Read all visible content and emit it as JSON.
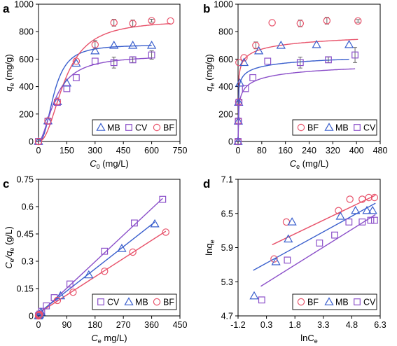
{
  "chart_data": [
    {
      "panel_label": "a",
      "type": "scatter",
      "xlabel": {
        "main": "C",
        "sub": "0",
        "unit": " (mg/L)"
      },
      "ylabel": {
        "main": "q",
        "sub": "e",
        "unit": " (mg/g)"
      },
      "xlim": [
        0,
        750
      ],
      "ylim": [
        0,
        1000
      ],
      "xticks": [
        "0",
        "150",
        "300",
        "450",
        "600",
        "750"
      ],
      "yticks": [
        "0",
        "200",
        "400",
        "600",
        "800",
        "1000"
      ],
      "xtick_values": [
        0,
        150,
        300,
        450,
        600,
        750
      ],
      "ytick_values": [
        0,
        200,
        400,
        600,
        800,
        1000
      ],
      "legend": [
        "MB",
        "CV",
        "BF"
      ],
      "series": [
        {
          "name": "MB",
          "marker": "triangle",
          "color": "#3a5fcd",
          "points": [
            [
              0,
              0
            ],
            [
              50,
              150
            ],
            [
              100,
              290
            ],
            [
              150,
              425
            ],
            [
              200,
              570
            ],
            [
              300,
              660
            ],
            [
              400,
              700
            ],
            [
              500,
              700
            ],
            [
              600,
              700
            ]
          ],
          "fit": {
            "qm": 705,
            "k": 0.012,
            "n": 2.4
          }
        },
        {
          "name": "CV",
          "marker": "square",
          "color": "#8b4fc9",
          "points": [
            [
              0,
              0
            ],
            [
              50,
              148
            ],
            [
              100,
              285
            ],
            [
              150,
              385
            ],
            [
              200,
              465
            ],
            [
              300,
              585
            ],
            [
              400,
              575
            ],
            [
              500,
              595
            ],
            [
              600,
              630
            ]
          ],
          "fit": {
            "qm": 628,
            "k": 0.011,
            "n": 1.8
          },
          "errors": [
            [
              400,
              40
            ],
            [
              500,
              20
            ],
            [
              600,
              30
            ]
          ]
        },
        {
          "name": "BF",
          "marker": "circle",
          "color": "#e8536b",
          "points": [
            [
              0,
              0
            ],
            [
              50,
              150
            ],
            [
              100,
              290
            ],
            [
              200,
              585
            ],
            [
              300,
              705
            ],
            [
              400,
              865
            ],
            [
              500,
              860
            ],
            [
              600,
              880
            ],
            [
              700,
              878
            ]
          ],
          "fit": {
            "qm": 883,
            "k": 0.0072,
            "n": 2.2
          },
          "errors": [
            [
              300,
              30
            ],
            [
              400,
              25
            ],
            [
              500,
              25
            ],
            [
              600,
              10
            ]
          ]
        }
      ]
    },
    {
      "panel_label": "b",
      "type": "scatter",
      "xlabel": {
        "main": "C",
        "sub": "e",
        "unit": " (mg/L)"
      },
      "ylabel": {
        "main": "q",
        "sub": "e",
        "unit": " (mg/g)"
      },
      "xlim": [
        0,
        480
      ],
      "ylim": [
        0,
        1000
      ],
      "xticks": [
        "0",
        "80",
        "160",
        "240",
        "320",
        "400",
        "480"
      ],
      "yticks": [
        "0",
        "200",
        "400",
        "600",
        "800",
        "1000"
      ],
      "xtick_values": [
        0,
        80,
        160,
        240,
        320,
        400,
        480
      ],
      "ytick_values": [
        0,
        200,
        400,
        600,
        800,
        1000
      ],
      "legend": [
        "BF",
        "MB",
        "CV"
      ],
      "series": [
        {
          "name": "BF",
          "marker": "circle",
          "color": "#e8536b",
          "points": [
            [
              0,
              0
            ],
            [
              1,
              150
            ],
            [
              2,
              290
            ],
            [
              3,
              575
            ],
            [
              20,
              610
            ],
            [
              60,
              700
            ],
            [
              115,
              865
            ],
            [
              210,
              860
            ],
            [
              300,
              880
            ],
            [
              405,
              878
            ]
          ],
          "fit": {
            "qm": 885,
            "b": 0.5,
            "n": 3.2
          },
          "errors": [
            [
              60,
              25
            ],
            [
              210,
              25
            ],
            [
              300,
              25
            ],
            [
              405,
              10
            ]
          ]
        },
        {
          "name": "MB",
          "marker": "triangle",
          "color": "#3a5fcd",
          "points": [
            [
              0,
              0
            ],
            [
              1,
              148
            ],
            [
              2,
              285
            ],
            [
              6,
              425
            ],
            [
              20,
              575
            ],
            [
              70,
              660
            ],
            [
              145,
              700
            ],
            [
              265,
              705
            ],
            [
              375,
              705
            ]
          ],
          "fit": {
            "qm": 712,
            "b": 0.55,
            "n": 3.2
          }
        },
        {
          "name": "CV",
          "marker": "square",
          "color": "#8b4fc9",
          "points": [
            [
              0,
              0
            ],
            [
              1,
              148
            ],
            [
              3,
              285
            ],
            [
              25,
              385
            ],
            [
              50,
              465
            ],
            [
              100,
              585
            ],
            [
              210,
              575
            ],
            [
              305,
              595
            ],
            [
              395,
              630
            ]
          ],
          "fit": {
            "qm": 632,
            "b": 0.13,
            "n": 2.4
          },
          "errors": [
            [
              210,
              40
            ],
            [
              305,
              20
            ],
            [
              395,
              55
            ]
          ]
        }
      ]
    },
    {
      "panel_label": "c",
      "type": "scatter",
      "xlabel": {
        "main": "C",
        "sub": "e",
        "unit": " mg/L)"
      },
      "ylabel": {
        "pre": "C",
        "presub": "e",
        "main": "/q",
        "sub": "e",
        "unit": " (g/L)"
      },
      "xlim": [
        0,
        450
      ],
      "ylim": [
        0,
        0.75
      ],
      "xticks": [
        "0",
        "90",
        "180",
        "270",
        "360",
        "450"
      ],
      "yticks": [
        "0",
        "0.15",
        "0.3",
        "0.45",
        "0.6",
        "0.75"
      ],
      "xtick_values": [
        0,
        90,
        180,
        270,
        360,
        450
      ],
      "ytick_values": [
        0,
        0.15,
        0.3,
        0.45,
        0.6,
        0.75
      ],
      "legend": [
        "CV",
        "MB",
        "BF"
      ],
      "series": [
        {
          "name": "CV",
          "marker": "square",
          "color": "#8b4fc9",
          "points": [
            [
              0,
              0
            ],
            [
              2,
              0.005
            ],
            [
              5,
              0.01
            ],
            [
              10,
              0.025
            ],
            [
              25,
              0.055
            ],
            [
              50,
              0.1
            ],
            [
              100,
              0.175
            ],
            [
              210,
              0.355
            ],
            [
              305,
              0.51
            ],
            [
              395,
              0.64
            ]
          ],
          "line": [
            [
              0,
              0.007
            ],
            [
              395,
              0.645
            ]
          ]
        },
        {
          "name": "MB",
          "marker": "triangle",
          "color": "#3a5fcd",
          "points": [
            [
              0,
              0
            ],
            [
              1,
              0.003
            ],
            [
              3,
              0.008
            ],
            [
              8,
              0.02
            ],
            [
              70,
              0.11
            ],
            [
              160,
              0.225
            ],
            [
              265,
              0.37
            ],
            [
              370,
              0.505
            ]
          ],
          "line": [
            [
              0,
              0.015
            ],
            [
              370,
              0.515
            ]
          ]
        },
        {
          "name": "BF",
          "marker": "circle",
          "color": "#e8536b",
          "points": [
            [
              0,
              0
            ],
            [
              1,
              0.004
            ],
            [
              2,
              0.006
            ],
            [
              3,
              0.008
            ],
            [
              60,
              0.085
            ],
            [
              110,
              0.13
            ],
            [
              210,
              0.245
            ],
            [
              300,
              0.35
            ],
            [
              405,
              0.46
            ]
          ],
          "line": [
            [
              0,
              0.015
            ],
            [
              405,
              0.465
            ]
          ]
        }
      ]
    },
    {
      "panel_label": "d",
      "type": "scatter",
      "xlabel": {
        "main": "lnC",
        "sub": "e",
        "unit": ""
      },
      "ylabel": {
        "main": "lnq",
        "sub": "e",
        "unit": ""
      },
      "xlim": [
        -1.2,
        6.3
      ],
      "ylim": [
        4.7,
        7.1
      ],
      "xticks": [
        "-1.2",
        "0.3",
        "1.8",
        "3.3",
        "4.8",
        "6.3"
      ],
      "yticks": [
        "4.7",
        "5.3",
        "5.9",
        "6.5",
        "7.1"
      ],
      "xtick_values": [
        -1.2,
        0.3,
        1.8,
        3.3,
        4.8,
        6.3
      ],
      "ytick_values": [
        4.7,
        5.3,
        5.9,
        6.5,
        7.1
      ],
      "legend": [
        "BF",
        "MB",
        "CV"
      ],
      "series": [
        {
          "name": "BF",
          "marker": "circle",
          "color": "#e8536b",
          "points": [
            [
              0.7,
              5.7
            ],
            [
              1.35,
              6.35
            ],
            [
              4.1,
              6.55
            ],
            [
              4.7,
              6.75
            ],
            [
              5.35,
              6.75
            ],
            [
              5.7,
              6.78
            ],
            [
              6.0,
              6.78
            ]
          ],
          "line": [
            [
              0.6,
              5.95
            ],
            [
              6.05,
              6.82
            ]
          ]
        },
        {
          "name": "MB",
          "marker": "triangle",
          "color": "#3a5fcd",
          "points": [
            [
              -0.35,
              5.05
            ],
            [
              0.8,
              5.65
            ],
            [
              1.45,
              6.05
            ],
            [
              1.65,
              6.35
            ],
            [
              4.2,
              6.45
            ],
            [
              5.0,
              6.55
            ],
            [
              5.6,
              6.55
            ],
            [
              5.9,
              6.55
            ]
          ],
          "line": [
            [
              -0.4,
              5.5
            ],
            [
              6.05,
              6.68
            ]
          ]
        },
        {
          "name": "CV",
          "marker": "square",
          "color": "#8b4fc9",
          "points": [
            [
              0.05,
              4.98
            ],
            [
              1.4,
              5.68
            ],
            [
              3.1,
              5.98
            ],
            [
              3.9,
              6.12
            ],
            [
              4.65,
              6.35
            ],
            [
              5.35,
              6.35
            ],
            [
              5.8,
              6.38
            ],
            [
              6.0,
              6.38
            ]
          ],
          "line": [
            [
              0.0,
              5.22
            ],
            [
              6.05,
              6.48
            ]
          ]
        }
      ]
    }
  ]
}
